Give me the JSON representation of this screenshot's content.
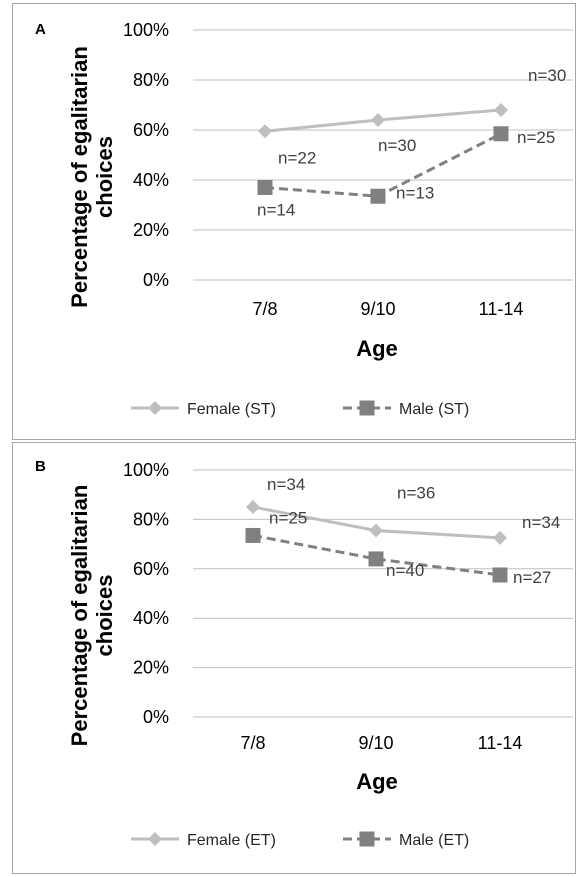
{
  "chart_data": [
    {
      "type": "line",
      "panel_label": "A",
      "categories": [
        "7/8",
        "9/10",
        "11-14"
      ],
      "xlabel": "Age",
      "ylabel": "Percentage of egalitarian choices",
      "ylim": [
        0,
        100
      ],
      "yticks": [
        "0%",
        "20%",
        "40%",
        "60%",
        "80%",
        "100%"
      ],
      "grid": true,
      "legend": "bottom",
      "series": [
        {
          "name": "Female (ST)",
          "values": [
            59.5,
            64,
            68
          ],
          "n_labels": [
            "n=22",
            "n=30",
            "n=30"
          ],
          "color": "#bfbfbf",
          "dashed": false,
          "marker": "diamond"
        },
        {
          "name": "Male (ST)",
          "values": [
            37,
            33.5,
            58.5
          ],
          "n_labels": [
            "n=14",
            "n=13",
            "n=25"
          ],
          "color": "#808080",
          "dashed": true,
          "marker": "square"
        }
      ]
    },
    {
      "type": "line",
      "panel_label": "B",
      "categories": [
        "7/8",
        "9/10",
        "11-14"
      ],
      "xlabel": "Age",
      "ylabel": "Percentage of egalitarian choices",
      "ylim": [
        0,
        100
      ],
      "yticks": [
        "0%",
        "20%",
        "40%",
        "60%",
        "80%",
        "100%"
      ],
      "grid": true,
      "legend": "bottom",
      "series": [
        {
          "name": "Female (ET)",
          "values": [
            85,
            75.5,
            72.5
          ],
          "n_labels": [
            "n=34",
            "n=36",
            "n=34"
          ],
          "color": "#bfbfbf",
          "dashed": false,
          "marker": "diamond"
        },
        {
          "name": "Male (ET)",
          "values": [
            73.5,
            64,
            57.5
          ],
          "n_labels": [
            "n=25",
            "n=40",
            "n=27"
          ],
          "color": "#808080",
          "dashed": true,
          "marker": "square"
        }
      ]
    }
  ]
}
